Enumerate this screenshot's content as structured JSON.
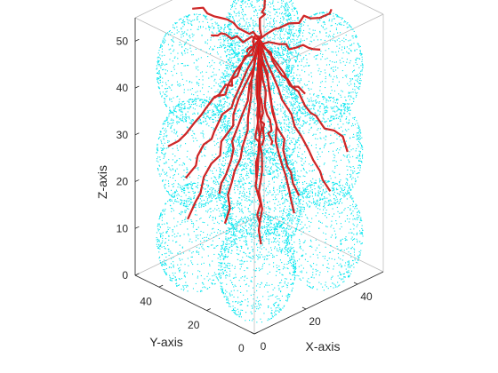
{
  "chart_data": {
    "type": "scatter3d",
    "title": "",
    "xlabel": "X-axis",
    "ylabel": "Y-axis",
    "zlabel": "Z-axis",
    "xlim": [
      0,
      50
    ],
    "ylim": [
      0,
      50
    ],
    "zlim": [
      0,
      55
    ],
    "x_ticks": [
      0,
      20,
      40
    ],
    "y_ticks": [
      0,
      20,
      40
    ],
    "z_ticks": [
      0,
      10,
      20,
      30,
      40,
      50
    ],
    "grid": false,
    "box": true,
    "series": [
      {
        "kind": "point-cloud-spheres",
        "color": "#00e5ee",
        "marker": "dot",
        "spheres": [
          {
            "center": [
              12,
              12,
              8
            ],
            "radius": 11
          },
          {
            "center": [
              38,
              12,
              8
            ],
            "radius": 11
          },
          {
            "center": [
              12,
              38,
              8
            ],
            "radius": 11
          },
          {
            "center": [
              38,
              38,
              8
            ],
            "radius": 11
          },
          {
            "center": [
              12,
              12,
              26
            ],
            "radius": 11
          },
          {
            "center": [
              38,
              12,
              26
            ],
            "radius": 11
          },
          {
            "center": [
              12,
              38,
              26
            ],
            "radius": 11
          },
          {
            "center": [
              38,
              38,
              26
            ],
            "radius": 11
          },
          {
            "center": [
              12,
              12,
              44
            ],
            "radius": 11
          },
          {
            "center": [
              38,
              12,
              44
            ],
            "radius": 11
          },
          {
            "center": [
              12,
              38,
              44
            ],
            "radius": 11
          },
          {
            "center": [
              38,
              38,
              44
            ],
            "radius": 11
          },
          {
            "center": [
              25,
              25,
              53
            ],
            "radius": 9
          }
        ]
      },
      {
        "kind": "branching-lines",
        "color": "#e01010",
        "root": [
          25,
          25,
          50
        ],
        "branches": [
          {
            "end": [
              10,
              14,
              55
            ],
            "steps": 10
          },
          {
            "end": [
              40,
              10,
              56
            ],
            "steps": 10
          },
          {
            "end": [
              14,
              40,
              56
            ],
            "steps": 10
          },
          {
            "end": [
              42,
              40,
              54
            ],
            "steps": 10
          },
          {
            "end": [
              4,
              20,
              44
            ],
            "steps": 10
          },
          {
            "end": [
              48,
              24,
              42
            ],
            "steps": 10
          },
          {
            "end": [
              22,
              4,
              44
            ],
            "steps": 10
          },
          {
            "end": [
              28,
              48,
              45
            ],
            "steps": 10
          },
          {
            "end": [
              8,
              8,
              30
            ],
            "steps": 12
          },
          {
            "end": [
              44,
              8,
              26
            ],
            "steps": 12
          },
          {
            "end": [
              6,
              42,
              28
            ],
            "steps": 12
          },
          {
            "end": [
              44,
              44,
              18
            ],
            "steps": 12
          },
          {
            "end": [
              18,
              18,
              14
            ],
            "steps": 12
          },
          {
            "end": [
              34,
              20,
              12
            ],
            "steps": 12
          },
          {
            "end": [
              20,
              34,
              10
            ],
            "steps": 12
          },
          {
            "end": [
              30,
              30,
              4
            ],
            "steps": 14
          },
          {
            "end": [
              12,
              28,
              20
            ],
            "steps": 12
          },
          {
            "end": [
              36,
              32,
              22
            ],
            "steps": 12
          },
          {
            "end": [
              26,
              10,
              20
            ],
            "steps": 12
          },
          {
            "end": [
              4,
              32,
              16
            ],
            "steps": 12
          },
          {
            "end": [
              46,
              18,
              14
            ],
            "steps": 12
          },
          {
            "end": [
              16,
              46,
              18
            ],
            "steps": 12
          }
        ]
      }
    ]
  }
}
